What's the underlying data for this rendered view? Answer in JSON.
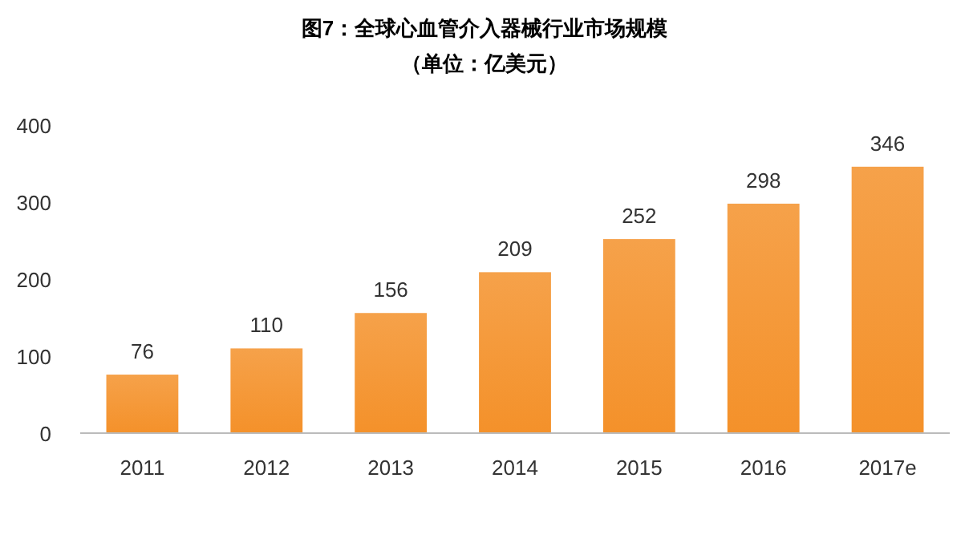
{
  "chart_data": {
    "type": "bar",
    "title": "图7：全球心血管介入器械行业市场规模",
    "subtitle": "（单位：亿美元）",
    "categories": [
      "2011",
      "2012",
      "2013",
      "2014",
      "2015",
      "2016",
      "2017e"
    ],
    "values": [
      76,
      110,
      156,
      209,
      252,
      298,
      346
    ],
    "color": "#f4912a",
    "ylim": [
      0,
      400
    ],
    "yticks": [
      0,
      100,
      200,
      300,
      400
    ],
    "grid": false,
    "data_labels": true
  }
}
